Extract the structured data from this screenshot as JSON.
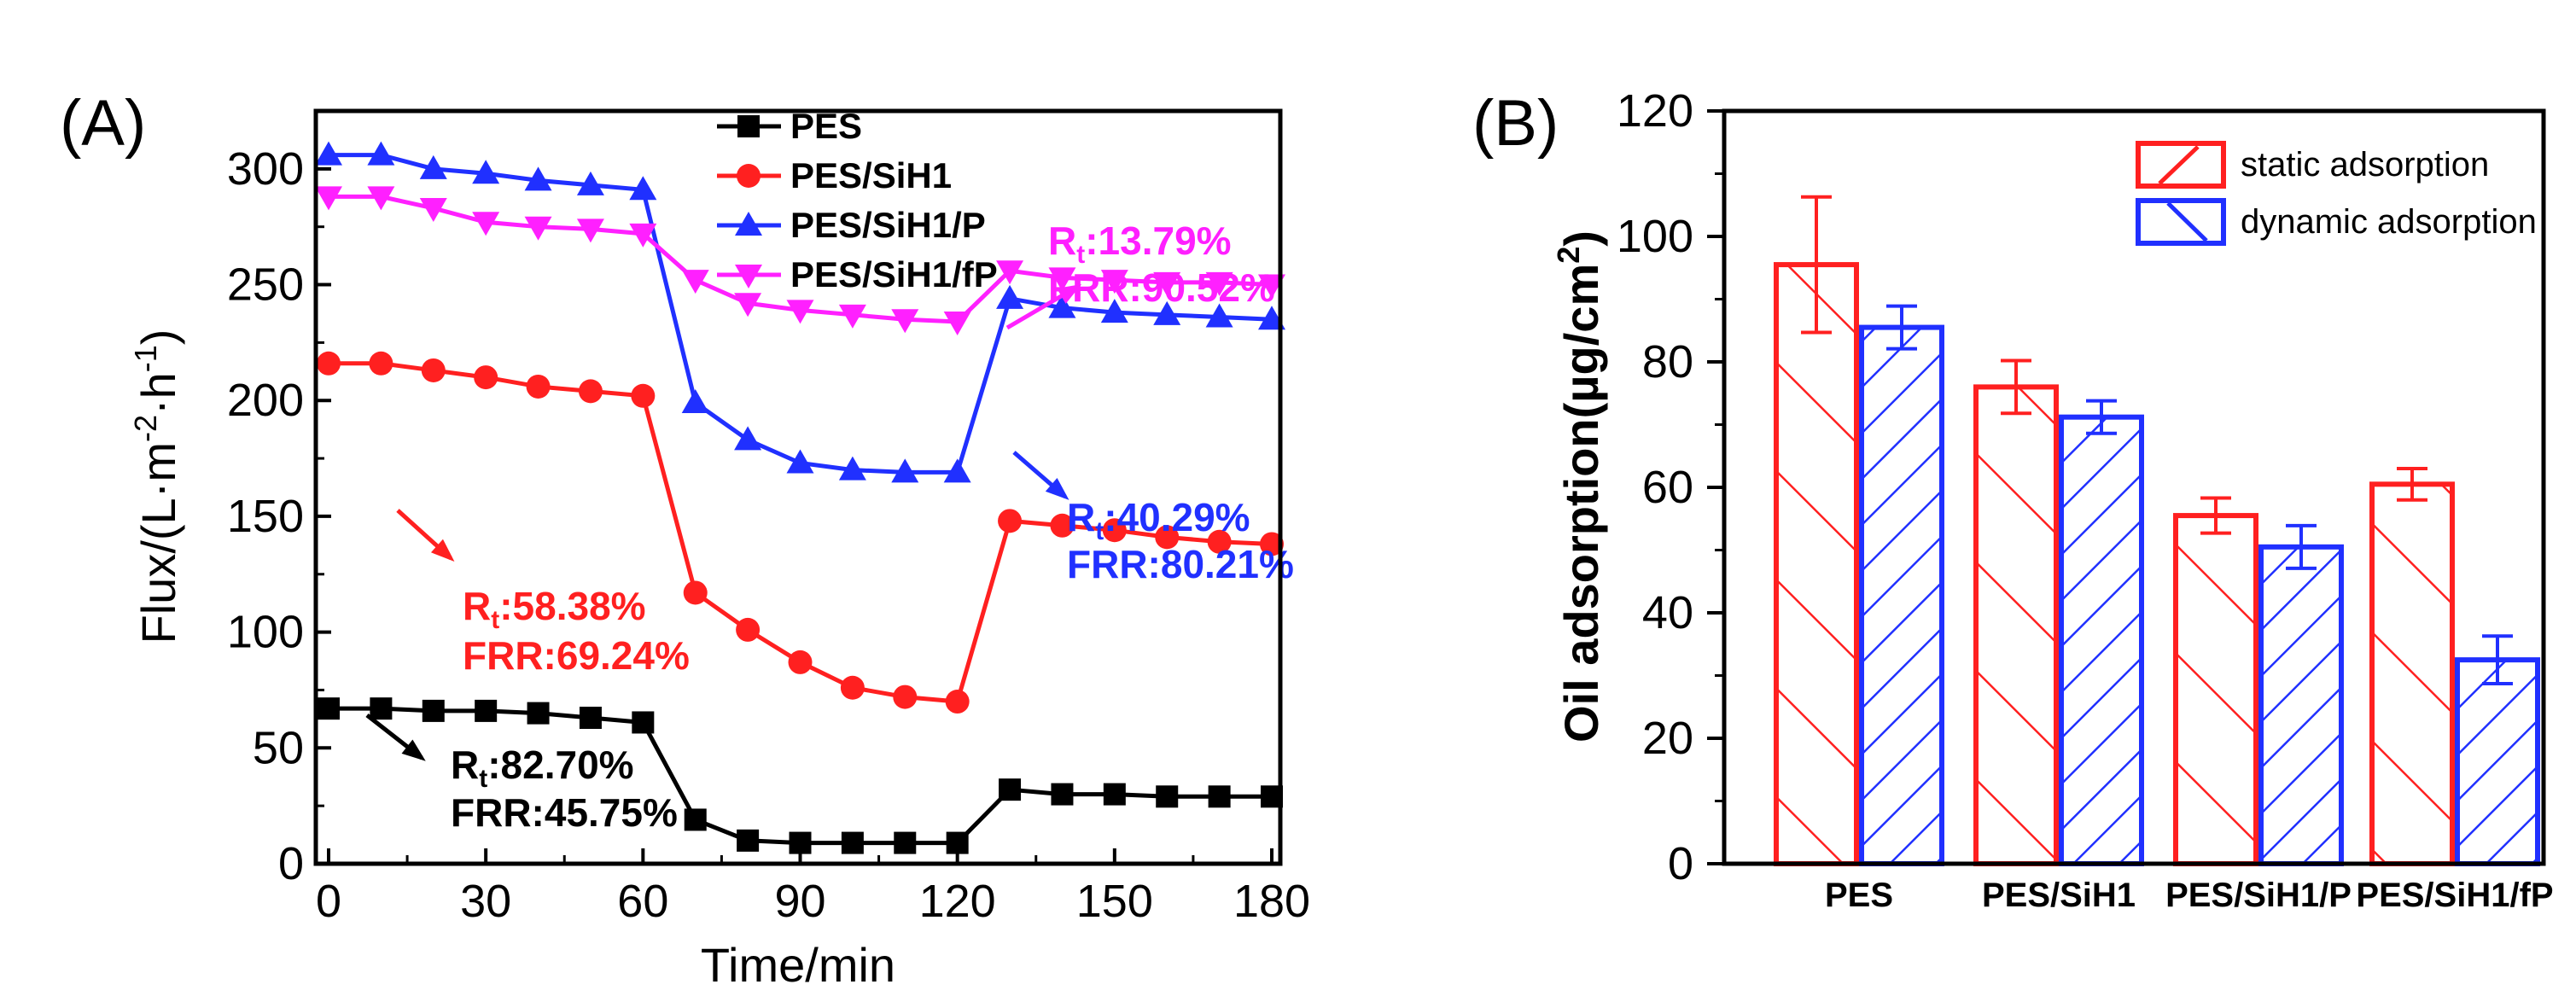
{
  "colors": {
    "PES": "#000000",
    "PES/SiH1": "#ff2020",
    "PES/SiH1/P": "#2030ff",
    "PES/SiH1/fP": "#ff20ff",
    "static": "#ff2020",
    "dynamic": "#2030ff"
  },
  "chart_data": [
    {
      "panel": "(A)",
      "type": "line",
      "title": "",
      "xlabel": "Time/min",
      "ylabel": "Flux/(L·m-2·h-1)",
      "ylabel_parts": {
        "base": "Flux/(L·m",
        "exp1": "-2",
        "mid": "·h",
        "exp2": "-1",
        "end": ")"
      },
      "xlim": [
        0,
        180
      ],
      "ylim": [
        0,
        325
      ],
      "xticks": [
        0,
        30,
        60,
        90,
        120,
        150,
        180
      ],
      "yticks": [
        0,
        50,
        100,
        150,
        200,
        250,
        300
      ],
      "x": [
        0,
        10,
        20,
        30,
        40,
        50,
        60,
        70,
        80,
        90,
        100,
        110,
        120,
        130,
        140,
        150,
        160,
        170,
        180
      ],
      "series": [
        {
          "name": "PES",
          "marker": "square",
          "color": "#000000",
          "values": [
            67,
            67,
            66,
            66,
            65,
            63,
            61,
            19,
            10,
            9,
            9,
            9,
            9,
            32,
            30,
            30,
            29,
            29,
            29
          ]
        },
        {
          "name": "PES/SiH1",
          "marker": "circle",
          "color": "#ff2020",
          "values": [
            216,
            216,
            213,
            210,
            206,
            204,
            202,
            117,
            101,
            87,
            76,
            72,
            70,
            148,
            146,
            144,
            141,
            139,
            138
          ]
        },
        {
          "name": "PES/SiH1/P",
          "marker": "triangle-up",
          "color": "#2030ff",
          "values": [
            306,
            306,
            300,
            298,
            295,
            293,
            291,
            199,
            183,
            173,
            170,
            169,
            169,
            244,
            240,
            238,
            237,
            236,
            235
          ]
        },
        {
          "name": "PES/SiH1/fP",
          "marker": "triangle-down",
          "color": "#ff20ff",
          "values": [
            288,
            288,
            283,
            277,
            275,
            274,
            272,
            252,
            242,
            239,
            237,
            235,
            234,
            256,
            253,
            252,
            251,
            251,
            250
          ]
        }
      ],
      "legend": [
        "PES",
        "PES/SiH1",
        "PES/SiH1/P",
        "PES/SiH1/fP"
      ],
      "annotations": [
        {
          "series": "PES/SiH1/fP",
          "rt": "13.79%",
          "frr": "FRR:90.52%"
        },
        {
          "series": "PES/SiH1/P",
          "rt": "40.29%",
          "frr": "FRR:80.21%"
        },
        {
          "series": "PES/SiH1",
          "rt": "58.38%",
          "frr": "FRR:69.24%"
        },
        {
          "series": "PES",
          "rt": "82.70%",
          "frr": "FRR:45.75%"
        }
      ]
    },
    {
      "panel": "(B)",
      "type": "bar",
      "title": "",
      "xlabel": "",
      "ylabel": "Oil adsorption(µg/cm2)",
      "ylabel_parts": {
        "base": "Oil adsorption(µg/cm",
        "exp": "2",
        "end": ")"
      },
      "ylim": [
        0,
        120
      ],
      "yticks": [
        0,
        20,
        40,
        60,
        80,
        100,
        120
      ],
      "categories": [
        "PES",
        "PES/SiH1",
        "PES/SiH1/P",
        "PES/SiH1/fP"
      ],
      "series": [
        {
          "name": "static adsorption",
          "color": "#ff2020",
          "hatch": "/",
          "values": [
            95.5,
            76,
            55.5,
            60.5
          ],
          "errors": [
            10.8,
            4.2,
            2.8,
            2.5
          ]
        },
        {
          "name": "dynamic adsorption",
          "color": "#2030ff",
          "hatch": "\\",
          "values": [
            85.5,
            71.2,
            50.5,
            32.5
          ],
          "errors": [
            3.4,
            2.6,
            3.4,
            3.8
          ]
        }
      ],
      "legend": [
        "static adsorption",
        "dynamic adsorption"
      ]
    }
  ]
}
